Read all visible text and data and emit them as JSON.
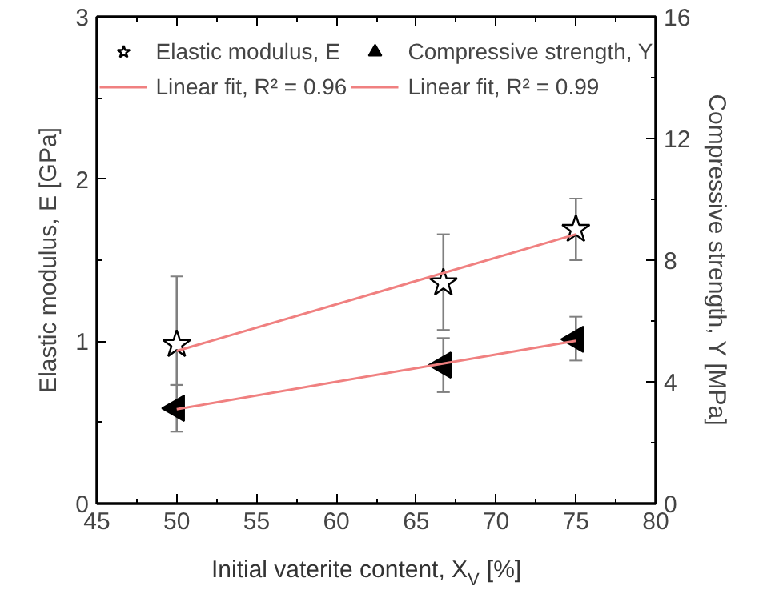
{
  "chart_data": {
    "type": "scatter",
    "xlabel": "Initial vaterite content, X$_{V}$ [%]",
    "ylabel": "Elastic modulus, E [GPa]",
    "y2label": "Compressive strength, Y [MPa]",
    "xlim": [
      45,
      80
    ],
    "xticks": [
      45,
      50,
      55,
      60,
      65,
      70,
      75,
      80
    ],
    "ylim": [
      0,
      3
    ],
    "yticks": [
      0,
      1,
      2,
      3
    ],
    "y2lim": [
      0,
      16
    ],
    "y2ticks": [
      0,
      4,
      8,
      12,
      16
    ],
    "legend": "top",
    "grid": false,
    "series": [
      {
        "name": "Elastic modulus, E",
        "marker": "star",
        "color": "#000000",
        "x": [
          50,
          66.7,
          75
        ],
        "values": [
          0.98,
          1.36,
          1.69
        ],
        "errors": [
          [
            0.73,
            1.4
          ],
          [
            1.07,
            1.66
          ],
          [
            1.5,
            1.88
          ]
        ]
      },
      {
        "name": "Compressive strength, Y",
        "marker": "triangle",
        "axis": "y2",
        "color": "#000000",
        "x": [
          50,
          66.7,
          75
        ],
        "values": [
          3.13,
          4.55,
          5.4
        ],
        "errors": [
          [
            2.36,
            3.9
          ],
          [
            3.66,
            5.44
          ],
          [
            4.7,
            6.14
          ]
        ]
      },
      {
        "name": "Linear fit, R² = 0.96",
        "type": "line",
        "color": "#f08080",
        "x": [
          50,
          75
        ],
        "values": [
          0.94,
          1.66
        ]
      },
      {
        "name": "Linear fit, R² = 0.99",
        "type": "line",
        "axis": "y2",
        "color": "#f08080",
        "x": [
          50,
          75
        ],
        "values": [
          3.1,
          5.35
        ]
      }
    ]
  }
}
